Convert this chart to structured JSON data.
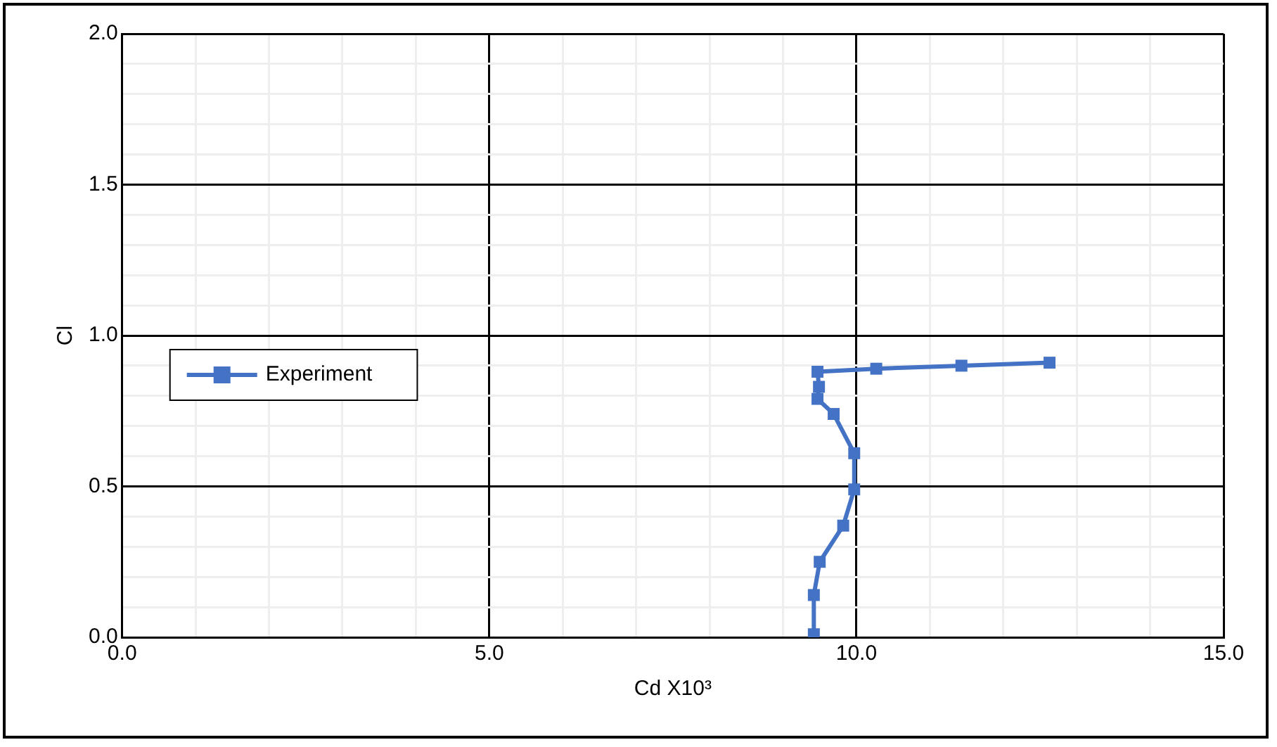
{
  "chart_data": {
    "type": "line",
    "xlabel": "Cd X10³",
    "ylabel": "Cl",
    "xlim": [
      0,
      15
    ],
    "ylim": [
      0,
      2
    ],
    "xticks": [
      {
        "value": 0,
        "label": "0.0"
      },
      {
        "value": 1,
        "label": null
      },
      {
        "value": 2,
        "label": null
      },
      {
        "value": 3,
        "label": null
      },
      {
        "value": 4,
        "label": null
      },
      {
        "value": 5,
        "label": "5.0"
      },
      {
        "value": 6,
        "label": null
      },
      {
        "value": 7,
        "label": null
      },
      {
        "value": 8,
        "label": null
      },
      {
        "value": 9,
        "label": null
      },
      {
        "value": 10,
        "label": "10.0"
      },
      {
        "value": 11,
        "label": null
      },
      {
        "value": 12,
        "label": null
      },
      {
        "value": 13,
        "label": null
      },
      {
        "value": 14,
        "label": null
      },
      {
        "value": 15,
        "label": "15.0"
      }
    ],
    "yticks": [
      {
        "value": 0,
        "label": "0.0"
      },
      {
        "value": 0.1,
        "label": null
      },
      {
        "value": 0.2,
        "label": null
      },
      {
        "value": 0.3,
        "label": null
      },
      {
        "value": 0.4,
        "label": null
      },
      {
        "value": 0.5,
        "label": "0.5"
      },
      {
        "value": 0.6,
        "label": null
      },
      {
        "value": 0.7,
        "label": null
      },
      {
        "value": 0.8,
        "label": null
      },
      {
        "value": 0.9,
        "label": null
      },
      {
        "value": 1,
        "label": "1.0"
      },
      {
        "value": 1.1,
        "label": null
      },
      {
        "value": 1.2,
        "label": null
      },
      {
        "value": 1.3,
        "label": null
      },
      {
        "value": 1.4,
        "label": null
      },
      {
        "value": 1.5,
        "label": "1.5"
      },
      {
        "value": 1.6,
        "label": null
      },
      {
        "value": 1.7,
        "label": null
      },
      {
        "value": 1.8,
        "label": null
      },
      {
        "value": 1.9,
        "label": null
      },
      {
        "value": 2,
        "label": "2.0"
      }
    ],
    "grid": true,
    "legend": "left",
    "marker": "square",
    "line_style": "solid",
    "series": [
      {
        "name": "Experiment",
        "color": "#4472c4",
        "x": [
          9.42,
          9.42,
          9.5,
          9.82,
          9.97,
          9.97,
          9.69,
          9.47,
          9.49,
          9.47,
          10.27,
          11.43,
          12.63
        ],
        "values": [
          0.01,
          0.14,
          0.25,
          0.37,
          0.49,
          0.61,
          0.74,
          0.79,
          0.83,
          0.88,
          0.89,
          0.9,
          0.91
        ]
      }
    ]
  }
}
